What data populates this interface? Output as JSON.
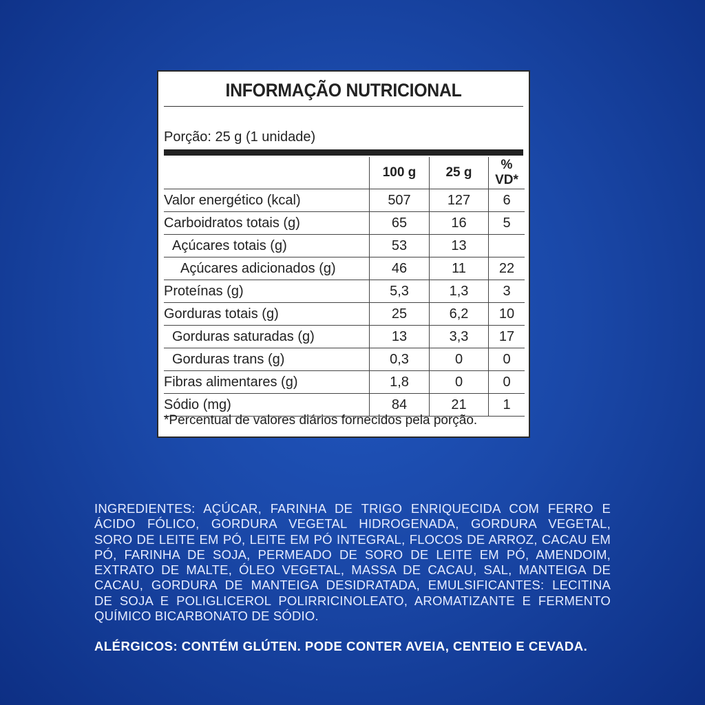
{
  "label": {
    "title": "INFORMAÇÃO NUTRICIONAL",
    "portion": "Porção: 25 g (1 unidade)",
    "headers": [
      "100 g",
      "25 g",
      "% VD*"
    ],
    "rows": [
      {
        "name": "Valor energético (kcal)",
        "per_100g": "507",
        "per_25g": "127",
        "vd": "6"
      },
      {
        "name": "Carboidratos totais (g)",
        "per_100g": "65",
        "per_25g": "16",
        "vd": "5"
      },
      {
        "name": "Açúcares totais (g)",
        "per_100g": "53",
        "per_25g": "13"
      },
      {
        "name": "Açúcares adicionados (g)",
        "per_100g": "46",
        "per_25g": "11",
        "vd": "22"
      },
      {
        "name": "Proteínas (g)",
        "per_100g": "5,3",
        "per_25g": "1,3",
        "vd": "3"
      },
      {
        "name": "Gorduras totais (g)",
        "per_100g": "25",
        "per_25g": "6,2",
        "vd": "10"
      },
      {
        "name": "Gorduras saturadas (g)",
        "per_100g": "13",
        "per_25g": "3,3",
        "vd": "17"
      },
      {
        "name": "Gorduras trans (g)",
        "per_100g": "0,3",
        "per_25g": "0",
        "vd": "0"
      },
      {
        "name": "Fibras alimentares (g)",
        "per_100g": "1,8",
        "per_25g": "0",
        "vd": "0"
      },
      {
        "name": "Sódio (mg)",
        "per_100g": "84",
        "per_25g": "21",
        "vd": "1"
      }
    ],
    "footnote": "*Percentual de valores diários fornecidos pela porção."
  },
  "ingredients": {
    "lines": [
      "INGREDIENTES: AÇÚCAR, FARINHA DE TRIGO ENRIQUECIDA COM FERRO E",
      "ÁCIDO FÓLICO, GORDURA VEGETAL HIDROGENADA, GORDURA VEGETAL,",
      "SORO DE LEITE EM PÓ, LEITE EM PÓ INTEGRAL, FLOCOS DE ARROZ, CACAU EM",
      "PÓ, FARINHA DE SOJA, PERMEADO DE SORO DE LEITE EM PÓ, AMENDOIM,",
      "EXTRATO DE MALTE, ÓLEO VEGETAL, MASSA DE CACAU, SAL, MANTEIGA DE",
      "CACAU, GORDURA DE MANTEIGA DESIDRATADA, EMULSIFICANTES: LECITINA",
      "DE SOJA E POLIGLICEROL POLIRRICINOLEATO, AROMATIZANTE E FERMENTO",
      "QUÍMICO BICARBONATO DE SÓDIO."
    ],
    "allergens": "ALÉRGICOS: CONTÉM GLÚTEN. PODE CONTER AVEIA, CENTEIO E CEVADA."
  }
}
